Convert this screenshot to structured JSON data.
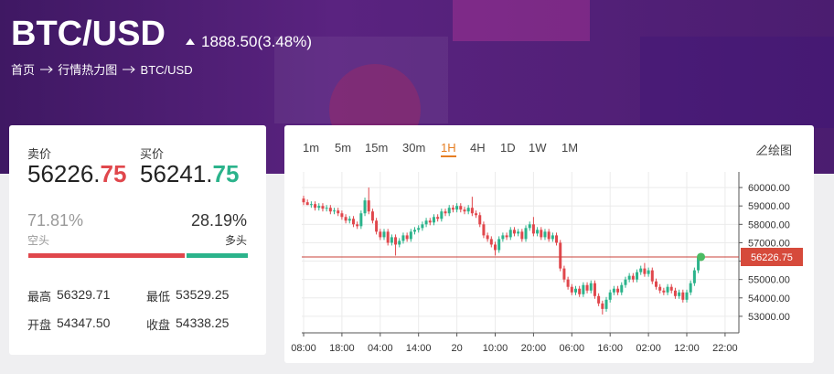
{
  "header": {
    "title": "BTC/USD",
    "change": "1888.50(3.48%)",
    "breadcrumb": [
      "首页",
      "行情热力图",
      "BTC/USD"
    ]
  },
  "quote": {
    "sell_label": "卖价",
    "sell_int": "56226.",
    "sell_dec": "75",
    "buy_label": "买价",
    "buy_int": "56241.",
    "buy_dec": "75",
    "sentiment": {
      "values": [
        71.81,
        28.19
      ],
      "value_labels": [
        "71.81%",
        "28.19%"
      ],
      "labels": [
        "空头",
        "多头"
      ],
      "colors": [
        "#e0474c",
        "#2bb38b"
      ]
    },
    "stats": [
      {
        "label": "最高",
        "value": "56329.71"
      },
      {
        "label": "最低",
        "value": "53529.25"
      },
      {
        "label": "开盘",
        "value": "54347.50"
      },
      {
        "label": "收盘",
        "value": "54338.25"
      }
    ]
  },
  "toolbar": {
    "intervals": [
      "1m",
      "5m",
      "15m",
      "30m",
      "1H",
      "4H",
      "1D",
      "1W",
      "1M"
    ],
    "active": 4,
    "draw": "绘图"
  },
  "chart_data": {
    "type": "candlestick",
    "up_color": "#2bb38b",
    "down_color": "#e0474c",
    "grid": true,
    "categories": [
      "08:00",
      null,
      null,
      null,
      null,
      null,
      null,
      null,
      null,
      null,
      "18:00",
      null,
      null,
      null,
      null,
      null,
      null,
      null,
      null,
      null,
      "04:00",
      null,
      null,
      null,
      null,
      null,
      null,
      null,
      null,
      null,
      "14:00",
      null,
      null,
      null,
      null,
      null,
      null,
      null,
      null,
      null,
      "20",
      null,
      null,
      null,
      null,
      null,
      null,
      null,
      null,
      null,
      "10:00",
      null,
      null,
      null,
      null,
      null,
      null,
      null,
      null,
      null,
      "20:00",
      null,
      null,
      null,
      null,
      null,
      null,
      null,
      null,
      null,
      "06:00",
      null,
      null,
      null,
      null,
      null,
      null,
      null,
      null,
      null,
      "16:00",
      null,
      null,
      null,
      null,
      null,
      null,
      null,
      null,
      null,
      "02:00",
      null,
      null,
      null,
      null,
      null,
      null,
      null,
      null,
      null,
      "12:00",
      null,
      null,
      null,
      null,
      null,
      null,
      null,
      null,
      null,
      "22:00"
    ],
    "open": [
      59400,
      59200,
      59050,
      59100,
      58900,
      59000,
      58850,
      58900,
      58700,
      58750,
      58600,
      58400,
      58200,
      58300,
      58000,
      57900,
      58600,
      59300,
      58700,
      58200,
      57600,
      57300,
      57600,
      57000,
      57300,
      56900,
      57100,
      57400,
      57200,
      57600,
      57700,
      57800,
      58000,
      58200,
      58100,
      58400,
      58300,
      58700,
      58600,
      58900,
      58800,
      59000,
      58800,
      58700,
      58900,
      58600,
      58500,
      58000,
      57400,
      57200,
      56900,
      56600,
      57200,
      57400,
      57300,
      57700,
      57500,
      57600,
      57200,
      57800,
      58000,
      57500,
      57700,
      57300,
      57600,
      57200,
      57400,
      57000,
      55600,
      55000,
      54600,
      54300,
      54500,
      54200,
      54700,
      54400,
      54800,
      54100,
      53700,
      53400,
      53900,
      54300,
      54500,
      54300,
      54700,
      55000,
      55200,
      55000,
      55400,
      55600,
      55300,
      55500,
      54900,
      54600,
      54400,
      54300,
      54600,
      54400,
      54100,
      54300,
      53900,
      54300,
      54800,
      55500,
      null,
      null,
      null,
      null,
      null,
      null,
      null
    ],
    "high": [
      59550,
      59350,
      59250,
      59250,
      59150,
      59150,
      59050,
      59050,
      58900,
      58900,
      58750,
      58550,
      58450,
      58450,
      58150,
      58750,
      59450,
      60000,
      58850,
      58350,
      57750,
      57750,
      57750,
      57450,
      57450,
      57250,
      57550,
      57550,
      57750,
      57850,
      57950,
      58150,
      58350,
      58350,
      58550,
      58550,
      58850,
      58850,
      59050,
      59050,
      59150,
      59150,
      58950,
      59050,
      59500,
      58750,
      58650,
      58150,
      57550,
      57350,
      57050,
      57350,
      57550,
      57550,
      57850,
      57850,
      57750,
      57750,
      57950,
      58150,
      58400,
      57850,
      57850,
      57750,
      57750,
      57550,
      57550,
      57150,
      55750,
      55150,
      54750,
      54650,
      54650,
      54850,
      54850,
      54950,
      54950,
      54250,
      53850,
      54050,
      54450,
      54650,
      54650,
      54850,
      55150,
      55350,
      55350,
      55550,
      55750,
      55900,
      55650,
      55650,
      55050,
      54750,
      54550,
      54750,
      54750,
      54550,
      54450,
      54450,
      54450,
      54950,
      55650,
      56300,
      null,
      null,
      null,
      null,
      null,
      null,
      null
    ],
    "low": [
      59050,
      59050,
      58900,
      58750,
      58750,
      58700,
      58700,
      58550,
      58550,
      58450,
      58250,
      58050,
      58050,
      57850,
      57750,
      57750,
      58450,
      58550,
      58050,
      57450,
      57150,
      57150,
      56850,
      56850,
      56300,
      56750,
      56950,
      57050,
      57050,
      57450,
      57550,
      57650,
      57850,
      57950,
      57950,
      58150,
      58150,
      58450,
      58450,
      58650,
      58650,
      58650,
      58550,
      58550,
      58450,
      58350,
      57850,
      57250,
      57050,
      56750,
      56300,
      56450,
      57050,
      57150,
      57150,
      57350,
      57350,
      57050,
      57050,
      57650,
      57350,
      57350,
      57150,
      57150,
      57050,
      57050,
      56850,
      55450,
      54850,
      54450,
      54150,
      54150,
      54050,
      54050,
      54250,
      54250,
      53950,
      53550,
      53100,
      53250,
      53750,
      54150,
      54150,
      54150,
      54550,
      54850,
      54850,
      54850,
      55250,
      55150,
      55150,
      54750,
      54450,
      54250,
      54150,
      54150,
      54250,
      53950,
      53950,
      53750,
      53750,
      54150,
      54650,
      55350,
      null,
      null,
      null,
      null,
      null,
      null,
      null
    ],
    "close": [
      59200,
      59050,
      59100,
      58900,
      59000,
      58850,
      58900,
      58700,
      58750,
      58600,
      58400,
      58200,
      58300,
      58000,
      57900,
      58600,
      59300,
      58700,
      58200,
      57600,
      57300,
      57600,
      57000,
      57300,
      56900,
      57100,
      57400,
      57200,
      57600,
      57700,
      57800,
      58000,
      58200,
      58100,
      58400,
      58300,
      58700,
      58600,
      58900,
      58800,
      59000,
      58800,
      58700,
      58900,
      58600,
      58500,
      58000,
      57400,
      57200,
      56900,
      56600,
      57200,
      57400,
      57300,
      57700,
      57500,
      57600,
      57200,
      57800,
      58000,
      57500,
      57700,
      57300,
      57600,
      57200,
      57400,
      57000,
      55600,
      55000,
      54600,
      54300,
      54500,
      54200,
      54700,
      54400,
      54800,
      54100,
      53700,
      53400,
      53900,
      54300,
      54500,
      54300,
      54700,
      55000,
      55200,
      55000,
      55400,
      55600,
      55300,
      55500,
      54900,
      54600,
      54400,
      54300,
      54600,
      54400,
      54100,
      54300,
      53900,
      54300,
      54800,
      55500,
      56226.75,
      null,
      null,
      null,
      null,
      null,
      null,
      null
    ],
    "ylim": [
      52100,
      60850
    ],
    "yticks": [
      {
        "value": 53000,
        "label": "53000.00"
      },
      {
        "value": 54000,
        "label": "54000.00"
      },
      {
        "value": 55000,
        "label": "55000.00"
      },
      {
        "value": 56000,
        "label": "56000.00"
      },
      {
        "value": 57000,
        "label": "57000.00"
      },
      {
        "value": 58000,
        "label": "58000.00"
      },
      {
        "value": 59000,
        "label": "59000.00"
      },
      {
        "value": 60000,
        "label": "60000.00"
      }
    ]
  }
}
